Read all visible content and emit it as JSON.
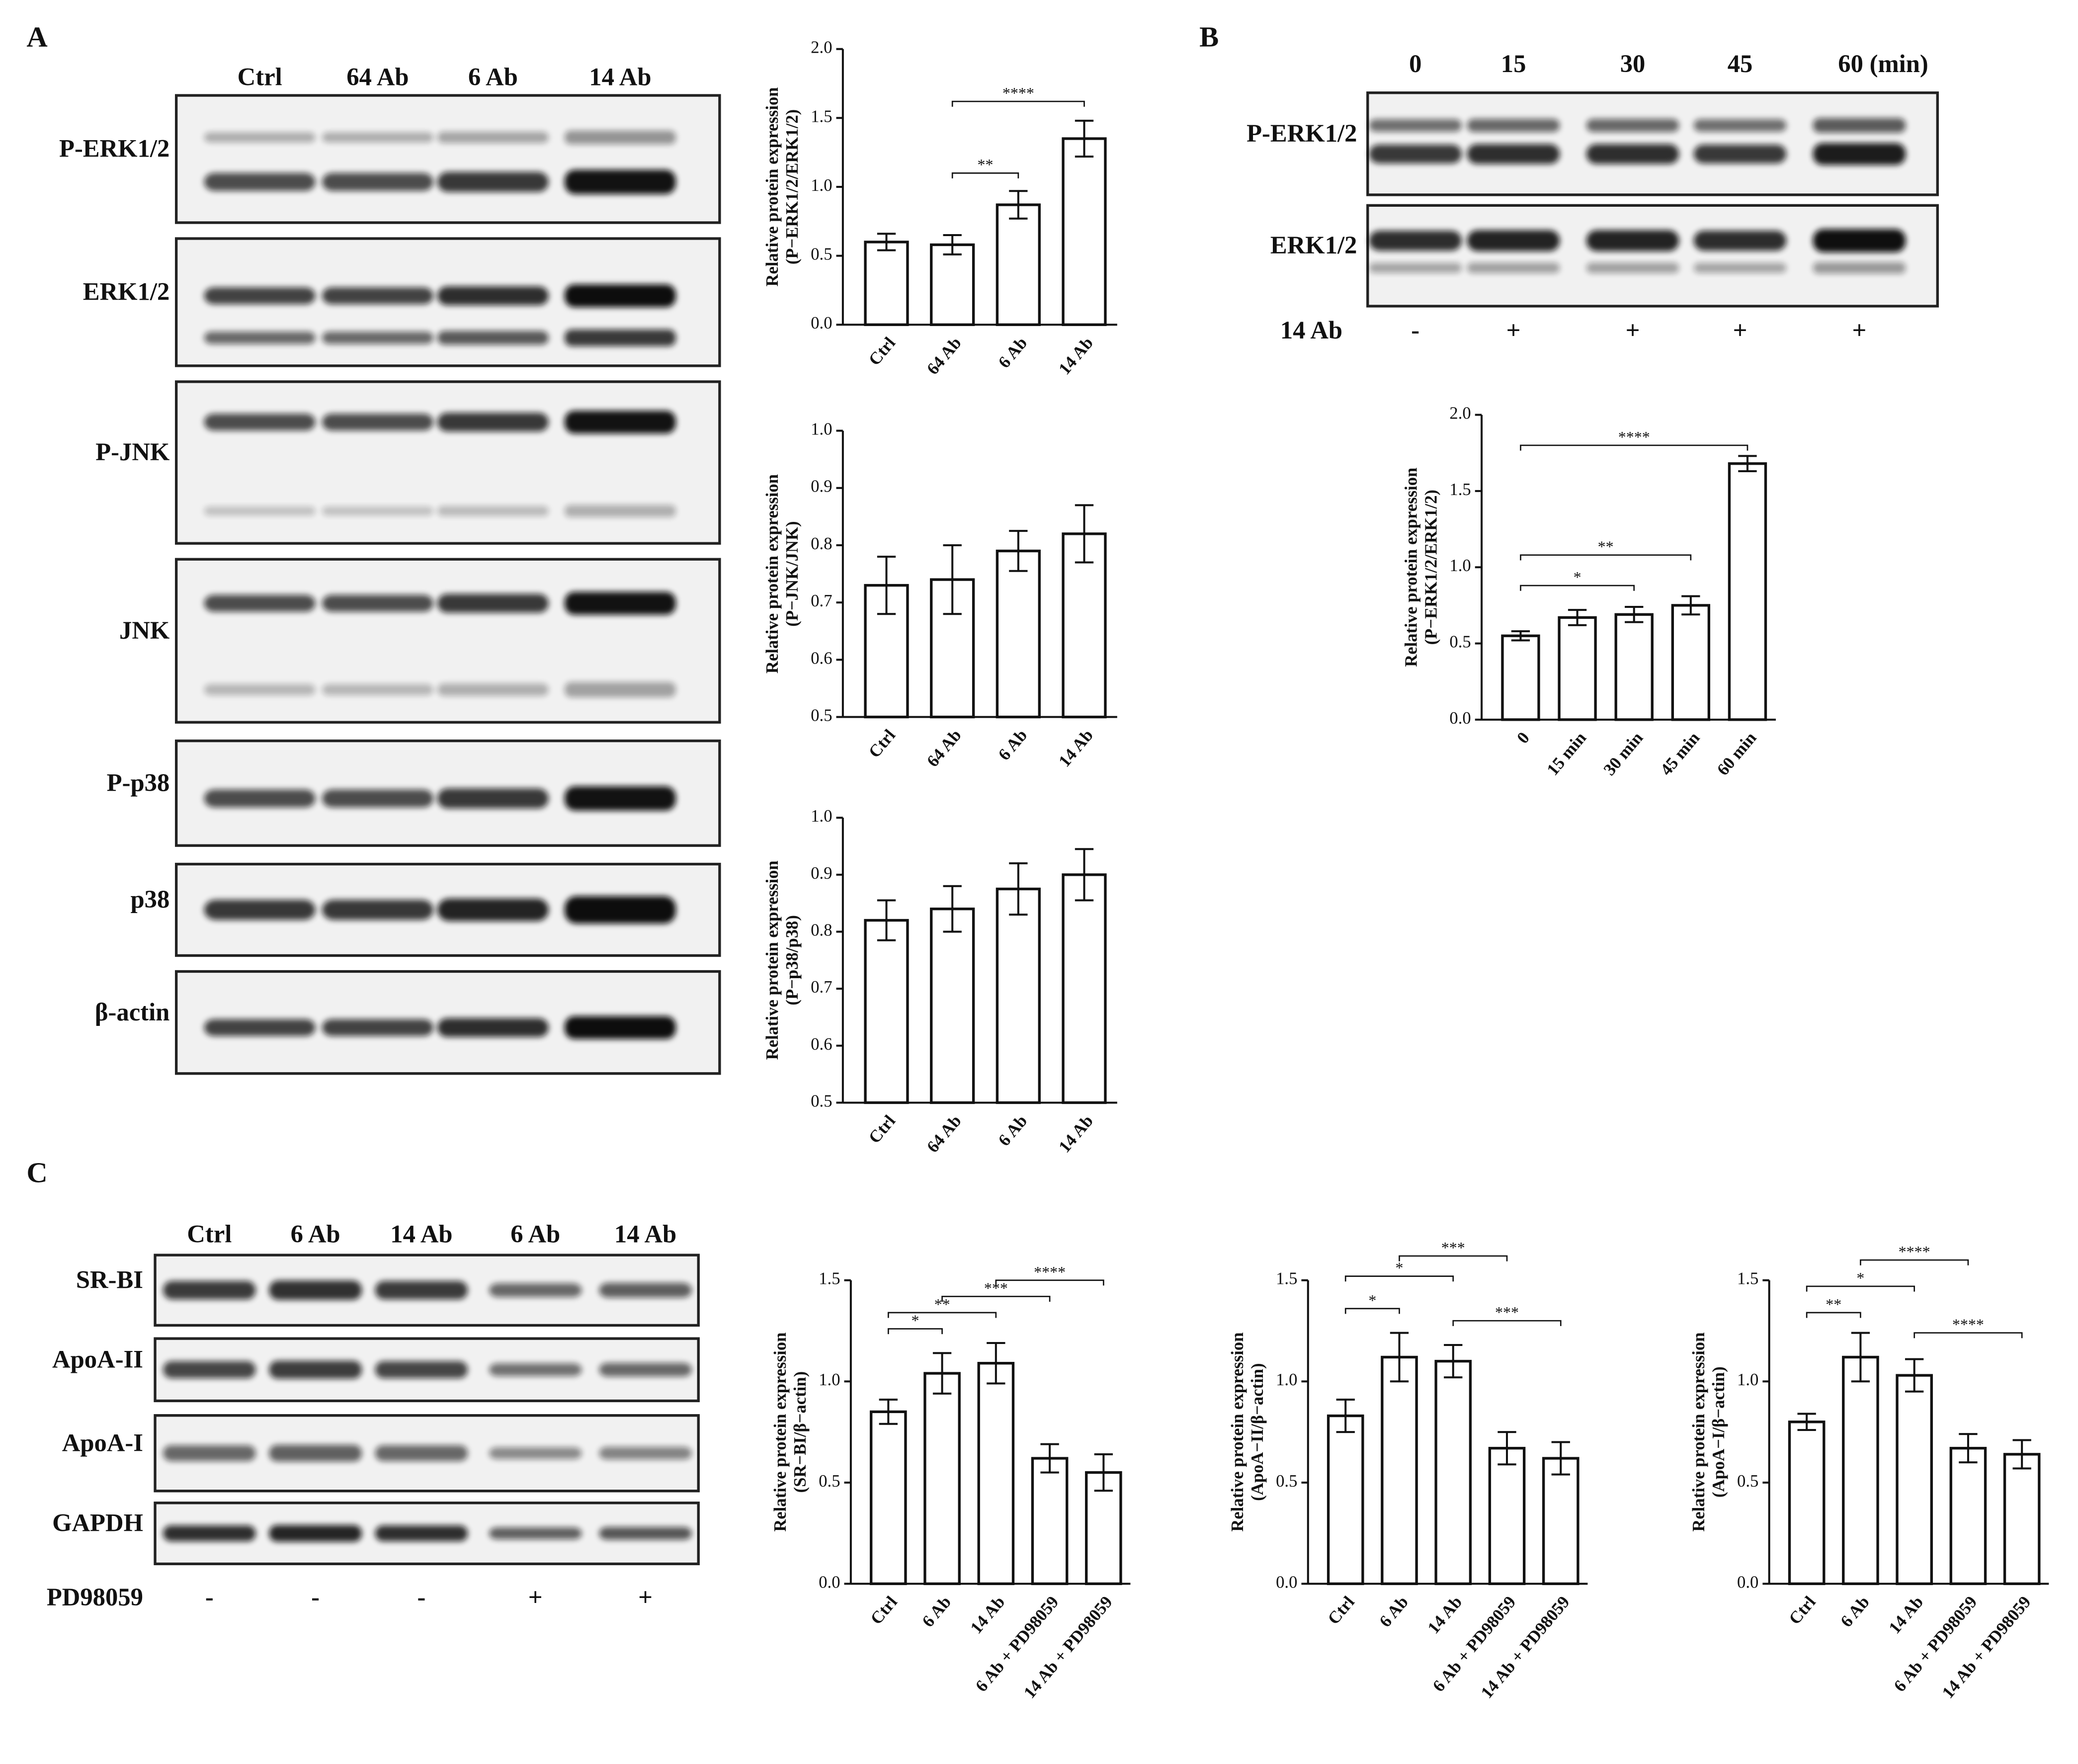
{
  "panels": [
    "A",
    "B",
    "C"
  ],
  "blot_a": {
    "lanes": [
      "Ctrl",
      "64 Ab",
      "6 Ab",
      "14 Ab"
    ],
    "rows": [
      "P-ERK1/2",
      "ERK1/2",
      "P-JNK",
      "JNK",
      "P-p38",
      "p38",
      "β-actin"
    ]
  },
  "blot_b": {
    "lanes": [
      "0",
      "15",
      "30",
      "45",
      "60 (min)"
    ],
    "rows": [
      "P-ERK1/2",
      "ERK1/2"
    ],
    "treatment": "14 Ab",
    "treatment_signs": [
      "-",
      "+",
      "+",
      "+",
      "+"
    ]
  },
  "blot_c": {
    "lanes": [
      "Ctrl",
      "6 Ab",
      "14 Ab",
      "6 Ab",
      "14 Ab"
    ],
    "rows": [
      "SR-BI",
      "ApoA-II",
      "ApoA-I",
      "GAPDH"
    ],
    "treatment": "PD98059",
    "treatment_signs": [
      "-",
      "-",
      "-",
      "+",
      "+"
    ]
  },
  "chart_data": [
    {
      "type": "bar",
      "ylabel": [
        "Relative protein expression",
        "(P−ERK1/2/ERK1/2)"
      ],
      "categories": [
        "Ctrl",
        "64 Ab",
        "6 Ab",
        "14 Ab"
      ],
      "values": [
        0.6,
        0.58,
        0.87,
        1.35
      ],
      "errors": [
        0.06,
        0.07,
        0.1,
        0.13
      ],
      "ylim": [
        0,
        2
      ],
      "yticks": [
        {
          "value": 0,
          "label": "0.0"
        },
        0.5,
        {
          "value": 1,
          "label": "1.0"
        },
        1.5,
        {
          "value": 2,
          "label": "2.0"
        }
      ],
      "annotations": [
        {
          "text": "****",
          "between": [
            "64 Ab",
            "14 Ab"
          ],
          "y": 1.62
        },
        {
          "text": "**",
          "between": [
            "64 Ab",
            "6 Ab"
          ],
          "y": 1.1
        }
      ]
    },
    {
      "type": "bar",
      "ylabel": [
        "Relative protein expression",
        "(P−JNK/JNK)"
      ],
      "categories": [
        "Ctrl",
        "64 Ab",
        "6 Ab",
        "14 Ab"
      ],
      "values": [
        0.73,
        0.74,
        0.79,
        0.82
      ],
      "errors": [
        0.05,
        0.06,
        0.035,
        0.05
      ],
      "ylim": [
        0.5,
        1
      ],
      "yticks": [
        0.5,
        0.6,
        0.7,
        0.8,
        0.9,
        {
          "value": 1,
          "label": "1.0"
        }
      ],
      "annotations": []
    },
    {
      "type": "bar",
      "ylabel": [
        "Relative protein expression",
        "(P−p38/p38)"
      ],
      "categories": [
        "Ctrl",
        "64 Ab",
        "6 Ab",
        "14 Ab"
      ],
      "values": [
        0.82,
        0.84,
        0.875,
        0.9
      ],
      "errors": [
        0.035,
        0.04,
        0.045,
        0.045
      ],
      "ylim": [
        0.5,
        1
      ],
      "yticks": [
        0.5,
        0.6,
        0.7,
        0.8,
        0.9,
        {
          "value": 1,
          "label": "1.0"
        }
      ],
      "annotations": []
    },
    {
      "type": "bar",
      "ylabel": [
        "Relative protein expression",
        "(P−ERK1/2/ERK1/2)"
      ],
      "categories": [
        "0",
        "15 min",
        "30 min",
        "45 min",
        "60 min"
      ],
      "values": [
        0.55,
        0.67,
        0.69,
        0.75,
        1.68
      ],
      "errors": [
        0.03,
        0.05,
        0.05,
        0.06,
        0.05
      ],
      "ylim": [
        0,
        2
      ],
      "yticks": [
        {
          "value": 0,
          "label": "0.0"
        },
        0.5,
        {
          "value": 1,
          "label": "1.0"
        },
        1.5,
        {
          "value": 2,
          "label": "2.0"
        }
      ],
      "annotations": [
        {
          "text": "****",
          "between": [
            "0",
            "60 min"
          ],
          "y": 1.8
        },
        {
          "text": "**",
          "between": [
            "0",
            "45 min"
          ],
          "y": 1.08
        },
        {
          "text": "*",
          "between": [
            "0",
            "30 min"
          ],
          "y": 0.88
        }
      ]
    },
    {
      "type": "bar",
      "ylabel": [
        "Relative protein expression",
        "(SR−BI/β−actin)"
      ],
      "categories": [
        "Ctrl",
        "6 Ab",
        "14 Ab",
        "6 Ab + PD98059",
        "14 Ab + PD98059"
      ],
      "values": [
        0.85,
        1.04,
        1.09,
        0.62,
        0.55
      ],
      "errors": [
        0.06,
        0.1,
        0.1,
        0.07,
        0.09
      ],
      "ylim": [
        0,
        1.5
      ],
      "yticks": [
        {
          "value": 0,
          "label": "0.0"
        },
        0.5,
        {
          "value": 1,
          "label": "1.0"
        },
        1.5
      ],
      "annotations": [
        {
          "text": "*",
          "between": [
            "Ctrl",
            "6 Ab"
          ],
          "y": 1.26
        },
        {
          "text": "**",
          "between": [
            "Ctrl",
            "14 Ab"
          ],
          "y": 1.34
        },
        {
          "text": "***",
          "between": [
            "6 Ab",
            "6 Ab + PD98059"
          ],
          "y": 1.42
        },
        {
          "text": "****",
          "between": [
            "14 Ab",
            "14 Ab + PD98059"
          ],
          "y": 1.5
        }
      ]
    },
    {
      "type": "bar",
      "ylabel": [
        "Relative protein expression",
        "(ApoA−II/β−actin)"
      ],
      "categories": [
        "Ctrl",
        "6 Ab",
        "14 Ab",
        "6 Ab + PD98059",
        "14 Ab + PD98059"
      ],
      "values": [
        0.83,
        1.12,
        1.1,
        0.67,
        0.62
      ],
      "errors": [
        0.08,
        0.12,
        0.08,
        0.08,
        0.08
      ],
      "ylim": [
        0,
        1.5
      ],
      "yticks": [
        {
          "value": 0,
          "label": "0.0"
        },
        0.5,
        {
          "value": 1,
          "label": "1.0"
        },
        1.5
      ],
      "annotations": [
        {
          "text": "*",
          "between": [
            "Ctrl",
            "6 Ab"
          ],
          "y": 1.36
        },
        {
          "text": "*",
          "between": [
            "Ctrl",
            "14 Ab"
          ],
          "y": 1.52
        },
        {
          "text": "***",
          "between": [
            "6 Ab",
            "6 Ab + PD98059"
          ],
          "y": 1.62
        },
        {
          "text": "***",
          "between": [
            "14 Ab",
            "14 Ab + PD98059"
          ],
          "y": 1.3
        }
      ]
    },
    {
      "type": "bar",
      "ylabel": [
        "Relative protein expression",
        "(ApoA−I/β−actin)"
      ],
      "categories": [
        "Ctrl",
        "6 Ab",
        "14 Ab",
        "6 Ab + PD98059",
        "14 Ab + PD98059"
      ],
      "values": [
        0.8,
        1.12,
        1.03,
        0.67,
        0.64
      ],
      "errors": [
        0.04,
        0.12,
        0.08,
        0.07,
        0.07
      ],
      "ylim": [
        0,
        1.5
      ],
      "yticks": [
        {
          "value": 0,
          "label": "0.0"
        },
        0.5,
        {
          "value": 1,
          "label": "1.0"
        },
        1.5
      ],
      "annotations": [
        {
          "text": "**",
          "between": [
            "Ctrl",
            "6 Ab"
          ],
          "y": 1.34
        },
        {
          "text": "*",
          "between": [
            "Ctrl",
            "14 Ab"
          ],
          "y": 1.47
        },
        {
          "text": "****",
          "between": [
            "6 Ab",
            "6 Ab + PD98059"
          ],
          "y": 1.6
        },
        {
          "text": "****",
          "between": [
            "14 Ab",
            "14 Ab + PD98059"
          ],
          "y": 1.24
        }
      ]
    }
  ]
}
